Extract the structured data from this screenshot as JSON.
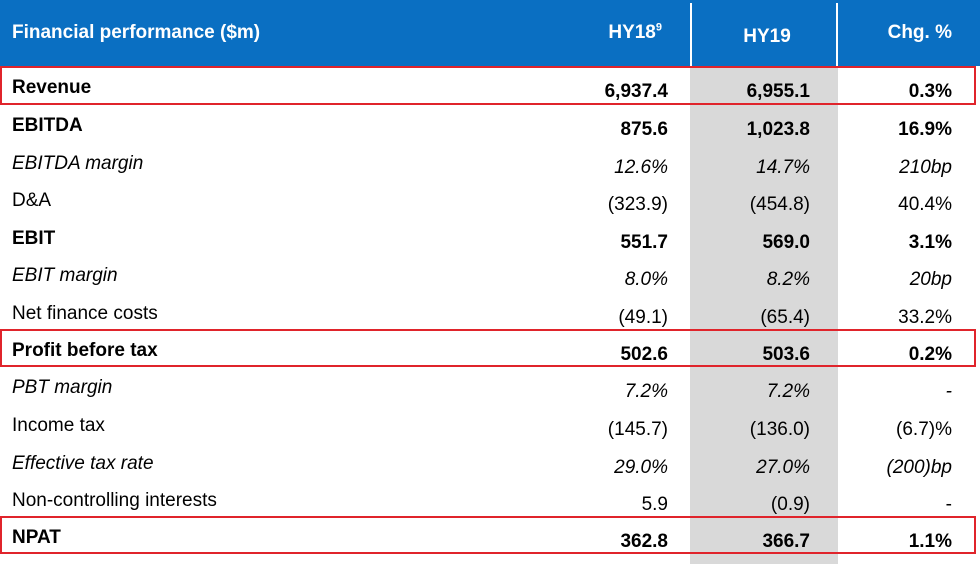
{
  "header": {
    "label": "Financial performance ($m)",
    "hy18": "HY18",
    "hy18_sup": "9",
    "hy19": "HY19",
    "chg": "Chg. %"
  },
  "rows": [
    {
      "label": "Revenue",
      "hy18": "6,937.4",
      "hy19": "6,955.1",
      "chg": "0.3%"
    },
    {
      "label": "EBITDA",
      "hy18": "875.6",
      "hy19": "1,023.8",
      "chg": "16.9%"
    },
    {
      "label": "EBITDA margin",
      "hy18": "12.6%",
      "hy19": "14.7%",
      "chg": "210bp"
    },
    {
      "label": "D&A",
      "hy18": "(323.9)",
      "hy19": "(454.8)",
      "chg": "40.4%"
    },
    {
      "label": "EBIT",
      "hy18": "551.7",
      "hy19": "569.0",
      "chg": "3.1%"
    },
    {
      "label": "EBIT margin",
      "hy18": "8.0%",
      "hy19": "8.2%",
      "chg": "20bp"
    },
    {
      "label": "Net finance costs",
      "hy18": "(49.1)",
      "hy19": "(65.4)",
      "chg": "33.2%"
    },
    {
      "label": "Profit before tax",
      "hy18": "502.6",
      "hy19": "503.6",
      "chg": "0.2%"
    },
    {
      "label": "PBT margin",
      "hy18": "7.2%",
      "hy19": "7.2%",
      "chg": "-"
    },
    {
      "label": "Income tax",
      "hy18": "(145.7)",
      "hy19": "(136.0)",
      "chg": "(6.7)%"
    },
    {
      "label": "Effective tax rate",
      "hy18": "29.0%",
      "hy19": "27.0%",
      "chg": "(200)bp"
    },
    {
      "label": "Non-controlling interests",
      "hy18": "5.9",
      "hy19": "(0.9)",
      "chg": "-"
    },
    {
      "label": "NPAT",
      "hy18": "362.8",
      "hy19": "366.7",
      "chg": "1.1%"
    }
  ],
  "colors": {
    "header_bg": "#0a6fc2",
    "highlight_col": "#d9d9d9",
    "box_border": "#e0242b"
  }
}
